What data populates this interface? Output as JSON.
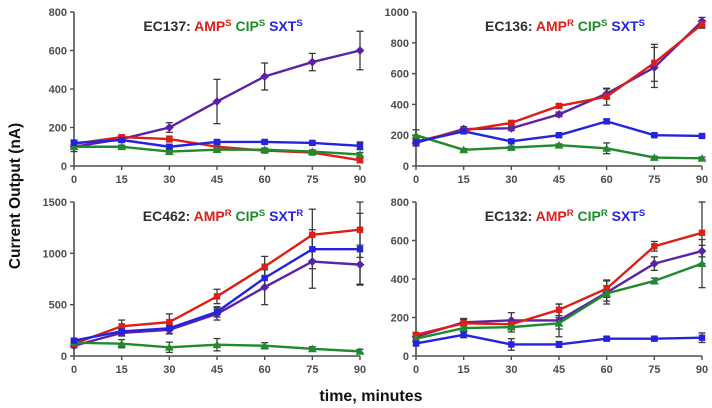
{
  "figure": {
    "y_axis_label": "Current Output (nA)",
    "x_axis_label": "time, minutes"
  },
  "colors": {
    "amp": "#dd1f16",
    "cip": "#1f8a2e",
    "sxt": "#2424dd",
    "control": "#5b22a8",
    "axis": "#4d4d4d",
    "error_bar": "#3a3a3a",
    "title": "#2f2f2f"
  },
  "chart_data": [
    {
      "type": "line",
      "strain": "EC137",
      "legend": [
        {
          "drug": "AMP",
          "superscript": "S",
          "color_key": "amp"
        },
        {
          "drug": "CIP",
          "superscript": "S",
          "color_key": "cip"
        },
        {
          "drug": "SXT",
          "superscript": "S",
          "color_key": "sxt"
        }
      ],
      "x": [
        0,
        15,
        30,
        45,
        60,
        75,
        90
      ],
      "ylim": [
        0,
        800
      ],
      "yticks": [
        0,
        200,
        400,
        600,
        800
      ],
      "series": [
        {
          "name": "no-antibiotic-control",
          "color_key": "control",
          "marker": "diamond",
          "values": [
            100,
            140,
            200,
            335,
            465,
            540,
            600
          ],
          "errors": [
            25,
            15,
            25,
            115,
            70,
            45,
            100
          ]
        },
        {
          "name": "AMP",
          "color_key": "amp",
          "marker": "square",
          "values": [
            115,
            150,
            140,
            100,
            80,
            70,
            30
          ],
          "errors": [
            15,
            10,
            15,
            10,
            10,
            10,
            12
          ]
        },
        {
          "name": "CIP",
          "color_key": "cip",
          "marker": "triangle",
          "values": [
            100,
            100,
            75,
            85,
            85,
            75,
            60
          ],
          "errors": [
            10,
            8,
            10,
            8,
            8,
            8,
            10
          ]
        },
        {
          "name": "SXT",
          "color_key": "sxt",
          "marker": "square",
          "values": [
            120,
            135,
            100,
            125,
            125,
            120,
            105
          ],
          "errors": [
            15,
            10,
            10,
            8,
            8,
            8,
            20
          ]
        }
      ]
    },
    {
      "type": "line",
      "strain": "EC136",
      "legend": [
        {
          "drug": "AMP",
          "superscript": "R",
          "color_key": "amp"
        },
        {
          "drug": "CIP",
          "superscript": "S",
          "color_key": "cip"
        },
        {
          "drug": "SXT",
          "superscript": "S",
          "color_key": "sxt"
        }
      ],
      "x": [
        0,
        15,
        30,
        45,
        60,
        75,
        90
      ],
      "ylim": [
        0,
        1000
      ],
      "yticks": [
        0,
        200,
        400,
        600,
        800,
        1000
      ],
      "series": [
        {
          "name": "no-antibiotic-control",
          "color_key": "control",
          "marker": "diamond",
          "values": [
            150,
            240,
            245,
            335,
            470,
            640,
            940
          ],
          "errors": [
            20,
            15,
            15,
            15,
            30,
            130,
            25
          ]
        },
        {
          "name": "AMP",
          "color_key": "amp",
          "marker": "square",
          "values": [
            160,
            230,
            280,
            390,
            450,
            670,
            920
          ],
          "errors": [
            15,
            12,
            12,
            12,
            55,
            120,
            25
          ]
        },
        {
          "name": "CIP",
          "color_key": "cip",
          "marker": "triangle",
          "values": [
            200,
            105,
            120,
            135,
            115,
            55,
            50
          ],
          "errors": [
            35,
            8,
            8,
            8,
            35,
            8,
            8
          ]
        },
        {
          "name": "SXT",
          "color_key": "sxt",
          "marker": "square",
          "values": [
            155,
            225,
            160,
            200,
            290,
            200,
            195
          ],
          "errors": [
            15,
            12,
            10,
            10,
            15,
            8,
            8
          ]
        }
      ]
    },
    {
      "type": "line",
      "strain": "EC462",
      "legend": [
        {
          "drug": "AMP",
          "superscript": "R",
          "color_key": "amp"
        },
        {
          "drug": "CIP",
          "superscript": "S",
          "color_key": "cip"
        },
        {
          "drug": "SXT",
          "superscript": "R",
          "color_key": "sxt"
        }
      ],
      "x": [
        0,
        15,
        30,
        45,
        60,
        75,
        90
      ],
      "ylim": [
        0,
        1500
      ],
      "yticks": [
        0,
        500,
        1000,
        1500
      ],
      "series": [
        {
          "name": "no-antibiotic-control",
          "color_key": "control",
          "marker": "diamond",
          "values": [
            100,
            225,
            255,
            410,
            670,
            920,
            890
          ],
          "errors": [
            20,
            30,
            40,
            60,
            170,
            260,
            190
          ]
        },
        {
          "name": "AMP",
          "color_key": "amp",
          "marker": "square",
          "values": [
            120,
            290,
            330,
            580,
            870,
            1180,
            1230
          ],
          "errors": [
            20,
            60,
            80,
            70,
            100,
            250,
            270
          ]
        },
        {
          "name": "CIP",
          "color_key": "cip",
          "marker": "triangle",
          "values": [
            130,
            120,
            85,
            110,
            100,
            70,
            45
          ],
          "errors": [
            20,
            40,
            50,
            60,
            30,
            20,
            20
          ]
        },
        {
          "name": "SXT",
          "color_key": "sxt",
          "marker": "square",
          "values": [
            150,
            240,
            270,
            430,
            760,
            1040,
            1040
          ],
          "errors": [
            20,
            40,
            50,
            50,
            90,
            190,
            350
          ]
        }
      ]
    },
    {
      "type": "line",
      "strain": "EC132",
      "legend": [
        {
          "drug": "AMP",
          "superscript": "R",
          "color_key": "amp"
        },
        {
          "drug": "CIP",
          "superscript": "R",
          "color_key": "cip"
        },
        {
          "drug": "SXT",
          "superscript": "S",
          "color_key": "sxt"
        }
      ],
      "x": [
        0,
        15,
        30,
        45,
        60,
        75,
        90
      ],
      "ylim": [
        0,
        800
      ],
      "yticks": [
        0,
        200,
        400,
        600,
        800
      ],
      "series": [
        {
          "name": "no-antibiotic-control",
          "color_key": "control",
          "marker": "diamond",
          "values": [
            100,
            175,
            185,
            185,
            330,
            480,
            545
          ],
          "errors": [
            10,
            15,
            40,
            85,
            60,
            35,
            30
          ]
        },
        {
          "name": "AMP",
          "color_key": "amp",
          "marker": "square",
          "values": [
            110,
            170,
            165,
            240,
            350,
            570,
            640
          ],
          "errors": [
            10,
            25,
            15,
            30,
            45,
            25,
            160
          ]
        },
        {
          "name": "CIP",
          "color_key": "cip",
          "marker": "triangle",
          "values": [
            90,
            145,
            150,
            170,
            325,
            390,
            480
          ],
          "errors": [
            10,
            10,
            25,
            30,
            40,
            15,
            125
          ]
        },
        {
          "name": "SXT",
          "color_key": "sxt",
          "marker": "square",
          "values": [
            65,
            110,
            60,
            60,
            90,
            90,
            95
          ],
          "errors": [
            10,
            15,
            30,
            15,
            10,
            10,
            25
          ]
        }
      ]
    }
  ]
}
